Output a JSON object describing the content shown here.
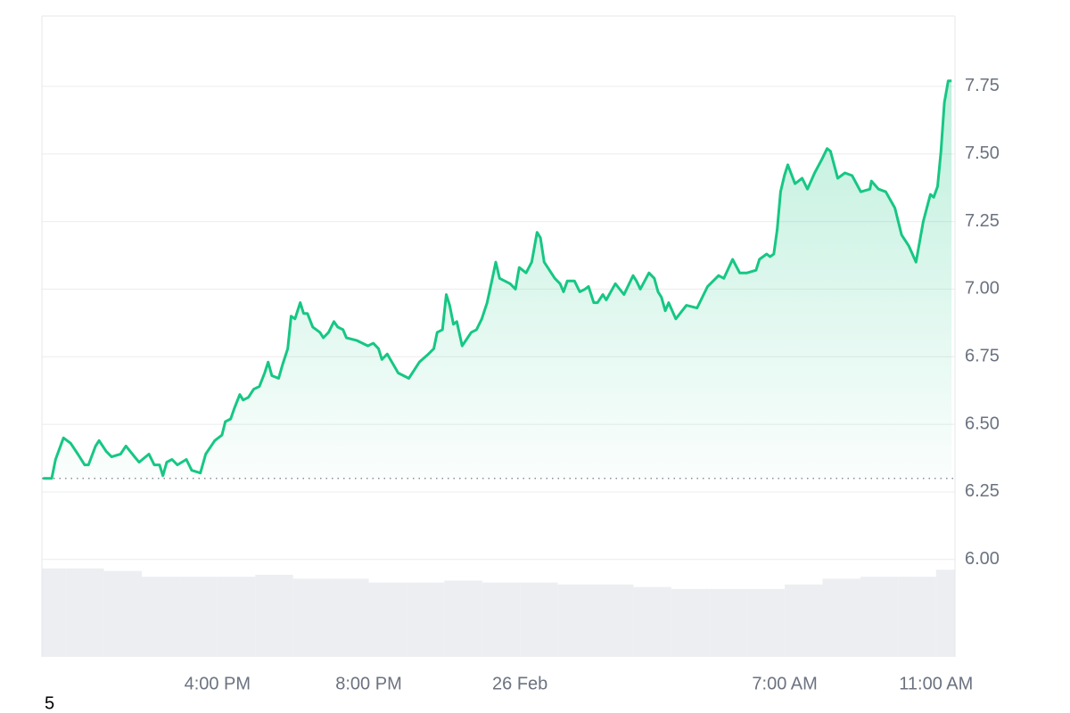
{
  "chart_data": {
    "type": "line",
    "annotation": "5",
    "x": [
      -12.61,
      -12.38,
      -12.28,
      -12.07,
      -11.88,
      -11.69,
      -11.51,
      -11.41,
      -11.22,
      -11.13,
      -10.94,
      -10.8,
      -10.56,
      -10.42,
      -10.19,
      -10.07,
      -9.81,
      -9.67,
      -9.53,
      -9.44,
      -9.34,
      -9.2,
      -9.06,
      -8.82,
      -8.68,
      -8.45,
      -8.31,
      -8.07,
      -7.88,
      -7.79,
      -7.65,
      -7.55,
      -7.41,
      -7.32,
      -7.18,
      -7.04,
      -6.89,
      -6.75,
      -6.66,
      -6.56,
      -6.38,
      -6.28,
      -6.14,
      -6.05,
      -5.95,
      -5.81,
      -5.72,
      -5.62,
      -5.48,
      -5.29,
      -5.2,
      -5.06,
      -4.92,
      -4.82,
      -4.68,
      -4.59,
      -4.31,
      -4.02,
      -3.88,
      -3.74,
      -3.65,
      -3.51,
      -3.22,
      -2.94,
      -2.8,
      -2.66,
      -2.42,
      -2.28,
      -2.19,
      -2.05,
      -1.95,
      -1.86,
      -1.76,
      -1.67,
      -1.53,
      -1.29,
      -1.15,
      -1.01,
      -0.87,
      -0.73,
      -0.64,
      -0.54,
      -0.26,
      -0.12,
      -0.02,
      0.16,
      0.31,
      0.45,
      0.54,
      0.64,
      0.92,
      1.06,
      1.15,
      1.25,
      1.44,
      1.58,
      1.72,
      1.81,
      1.95,
      2.05,
      2.19,
      2.28,
      2.52,
      2.75,
      2.99,
      3.08,
      3.18,
      3.41,
      3.55,
      3.65,
      3.74,
      3.84,
      3.93,
      4.12,
      4.4,
      4.68,
      4.96,
      5.25,
      5.39,
      5.62,
      5.81,
      6.0,
      6.24,
      6.33,
      6.52,
      6.61,
      6.71,
      6.8,
      6.89,
      6.99,
      7.08,
      7.27,
      7.46,
      7.6,
      7.79,
      7.98,
      8.12,
      8.21,
      8.4,
      8.59,
      8.78,
      9.01,
      9.25,
      9.29,
      9.48,
      9.67,
      9.91,
      10.09,
      10.28,
      10.47,
      10.66,
      10.85,
      10.94,
      11.04,
      11.13,
      11.22,
      11.32,
      11.41
    ],
    "series": [
      {
        "color": "#16c784",
        "values": [
          6.3,
          6.3,
          6.37,
          6.45,
          6.43,
          6.39,
          6.35,
          6.35,
          6.42,
          6.44,
          6.4,
          6.38,
          6.39,
          6.42,
          6.38,
          6.36,
          6.39,
          6.35,
          6.35,
          6.31,
          6.36,
          6.37,
          6.35,
          6.37,
          6.33,
          6.32,
          6.39,
          6.44,
          6.46,
          6.51,
          6.52,
          6.56,
          6.61,
          6.59,
          6.6,
          6.63,
          6.64,
          6.69,
          6.73,
          6.68,
          6.67,
          6.72,
          6.78,
          6.9,
          6.89,
          6.95,
          6.91,
          6.91,
          6.86,
          6.84,
          6.82,
          6.84,
          6.88,
          6.86,
          6.85,
          6.82,
          6.81,
          6.79,
          6.8,
          6.78,
          6.74,
          6.76,
          6.69,
          6.67,
          6.7,
          6.73,
          6.76,
          6.78,
          6.84,
          6.85,
          6.98,
          6.94,
          6.87,
          6.88,
          6.79,
          6.84,
          6.85,
          6.89,
          6.95,
          7.04,
          7.1,
          7.04,
          7.02,
          7.0,
          7.08,
          7.06,
          7.1,
          7.21,
          7.19,
          7.1,
          7.04,
          7.02,
          6.99,
          7.03,
          7.03,
          6.99,
          7.0,
          7.01,
          6.95,
          6.95,
          6.98,
          6.96,
          7.02,
          6.98,
          7.05,
          7.03,
          7.0,
          7.06,
          7.04,
          6.99,
          6.97,
          6.92,
          6.95,
          6.89,
          6.94,
          6.93,
          7.01,
          7.05,
          7.04,
          7.11,
          7.06,
          7.06,
          7.07,
          7.11,
          7.13,
          7.12,
          7.13,
          7.22,
          7.36,
          7.42,
          7.46,
          7.39,
          7.41,
          7.37,
          7.43,
          7.48,
          7.52,
          7.51,
          7.41,
          7.43,
          7.42,
          7.36,
          7.37,
          7.4,
          7.37,
          7.36,
          7.3,
          7.2,
          7.16,
          7.1,
          7.25,
          7.35,
          7.34,
          7.38,
          7.51,
          7.69,
          7.77,
          7.77
        ]
      }
    ],
    "reference_line": 6.3,
    "volume": {
      "color": "#eceef2",
      "axis": "y2",
      "x": [
        -12.5,
        -11.5,
        -10.5,
        -9.5,
        -8.5,
        -7.5,
        -6.5,
        -5.5,
        -4.5,
        -3.5,
        -2.5,
        -1.5,
        -0.5,
        0.5,
        1.5,
        2.5,
        3.5,
        4.5,
        5.5,
        6.5,
        7.5,
        8.5,
        9.5,
        10.5,
        11.5
      ],
      "values": [
        13.8,
        13.8,
        13.4,
        12.5,
        12.5,
        12.5,
        12.8,
        12.2,
        12.2,
        11.6,
        11.6,
        11.9,
        11.6,
        11.6,
        11.3,
        11.3,
        10.9,
        10.6,
        10.6,
        10.6,
        11.3,
        12.2,
        12.5,
        12.5,
        13.6
      ]
    },
    "xlim": [
      -12.64,
      11.5
    ],
    "xticks": [
      {
        "value": -8,
        "label": "4:00 PM"
      },
      {
        "value": -4,
        "label": "8:00 PM"
      },
      {
        "value": 0,
        "label": "26 Feb"
      },
      {
        "value": 7,
        "label": "7:00 AM"
      },
      {
        "value": 11,
        "label": "11:00 AM"
      }
    ],
    "ylim": [
      5.64,
      8.01
    ],
    "yticks": [
      {
        "value": 6,
        "label": "6.00"
      },
      6.25,
      {
        "value": 6.5,
        "label": "6.50"
      },
      6.75,
      {
        "value": 7,
        "label": "7.00"
      },
      7.25,
      {
        "value": 7.5,
        "label": "7.50"
      },
      7.75
    ],
    "y2lim": [
      0,
      100
    ],
    "grid": true
  }
}
